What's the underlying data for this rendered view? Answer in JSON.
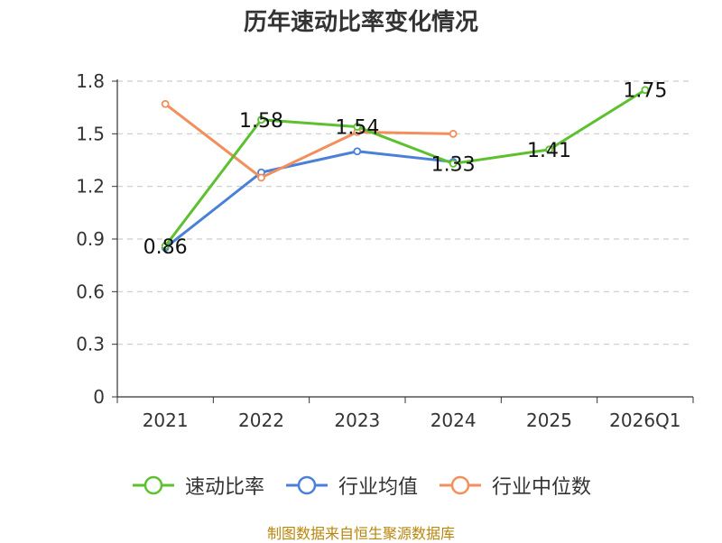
{
  "chart_data": {
    "type": "line",
    "title": "历年速动比率变化情况",
    "categories": [
      "2021",
      "2022",
      "2023",
      "2024",
      "2025",
      "2026Q1"
    ],
    "yticks": [
      "0",
      "0.3",
      "0.6",
      "0.9",
      "1.2",
      "1.5",
      "1.8"
    ],
    "ylim": [
      0,
      1.8
    ],
    "series": [
      {
        "name": "速动比率",
        "color": "#5cc02f",
        "values": [
          0.86,
          1.58,
          1.54,
          1.33,
          1.41,
          1.75
        ],
        "labels": [
          "0.86",
          "1.58",
          "1.54",
          "1.33",
          "1.41",
          "1.75"
        ]
      },
      {
        "name": "行业均值",
        "color": "#4a80d8",
        "values": [
          0.85,
          1.28,
          1.4,
          1.34,
          null,
          null
        ]
      },
      {
        "name": "行业中位数",
        "color": "#f28f5c",
        "values": [
          1.67,
          1.25,
          1.51,
          1.5,
          null,
          null
        ]
      }
    ],
    "grid": "dashed horizontal",
    "legend": "bottom",
    "source": "制图数据来自恒生聚源数据库"
  }
}
